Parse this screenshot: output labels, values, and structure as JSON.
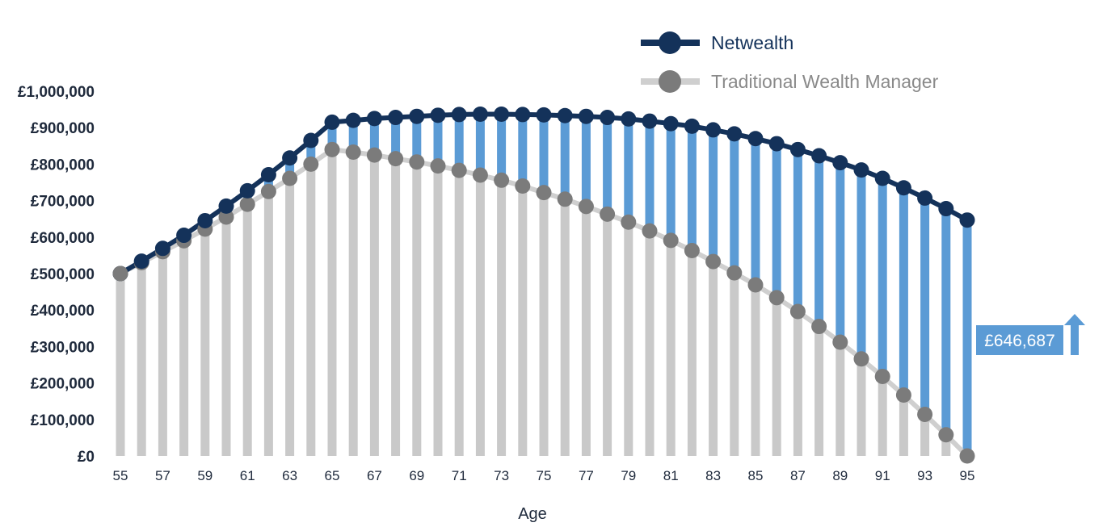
{
  "colors": {
    "netwealth": "#14325a",
    "traditional": "#7b7b7b",
    "traditional_line": "#cfcfcf",
    "gap_bar": "#5b9bd5",
    "base_bar": "#c9c9c9",
    "callout": "#5b9bd5",
    "legend_traditional_text": "#8a8a8a"
  },
  "chart_data": {
    "type": "line",
    "xlabel": "Age",
    "ylabel": "",
    "ylim": [
      0,
      1000000
    ],
    "y_ticks": [
      0,
      100000,
      200000,
      300000,
      400000,
      500000,
      600000,
      700000,
      800000,
      900000,
      1000000
    ],
    "y_tick_labels": [
      "£0",
      "£100,000",
      "£200,000",
      "£300,000",
      "£400,000",
      "£500,000",
      "£600,000",
      "£700,000",
      "£800,000",
      "£900,000",
      "£1,000,000"
    ],
    "x_tick_labels": [
      "55",
      "57",
      "59",
      "61",
      "63",
      "65",
      "67",
      "69",
      "71",
      "73",
      "75",
      "77",
      "79",
      "81",
      "83",
      "85",
      "87",
      "89",
      "91",
      "93",
      "95"
    ],
    "legend_position": "top-right",
    "x": [
      55,
      56,
      57,
      58,
      59,
      60,
      61,
      62,
      63,
      64,
      65,
      66,
      67,
      68,
      69,
      70,
      71,
      72,
      73,
      74,
      75,
      76,
      77,
      78,
      79,
      80,
      81,
      82,
      83,
      84,
      85,
      86,
      87,
      88,
      89,
      90,
      91,
      92,
      93,
      94,
      95
    ],
    "series": [
      {
        "name": "Netwealth",
        "values": [
          500000,
          534000,
          569000,
          605000,
          645000,
          685000,
          727000,
          771000,
          817000,
          865000,
          915000,
          920000,
          925000,
          928000,
          931000,
          934000,
          936000,
          937000,
          937000,
          936000,
          935000,
          933000,
          931000,
          928000,
          924000,
          918000,
          911000,
          904000,
          894000,
          883000,
          870000,
          856000,
          840000,
          823000,
          804000,
          784000,
          761000,
          735000,
          707000,
          678000,
          646687
        ]
      },
      {
        "name": "Traditional Wealth Manager",
        "values": [
          500000,
          530000,
          560000,
          590000,
          622000,
          655000,
          690000,
          725000,
          761000,
          800000,
          840000,
          833000,
          825000,
          815000,
          806000,
          795000,
          783000,
          770000,
          756000,
          740000,
          722000,
          704000,
          684000,
          663000,
          641000,
          617000,
          591000,
          563000,
          533000,
          502000,
          469000,
          434000,
          396000,
          355000,
          312000,
          266000,
          218000,
          167000,
          114000,
          58000,
          0
        ]
      }
    ],
    "annotation": "£646,687"
  }
}
